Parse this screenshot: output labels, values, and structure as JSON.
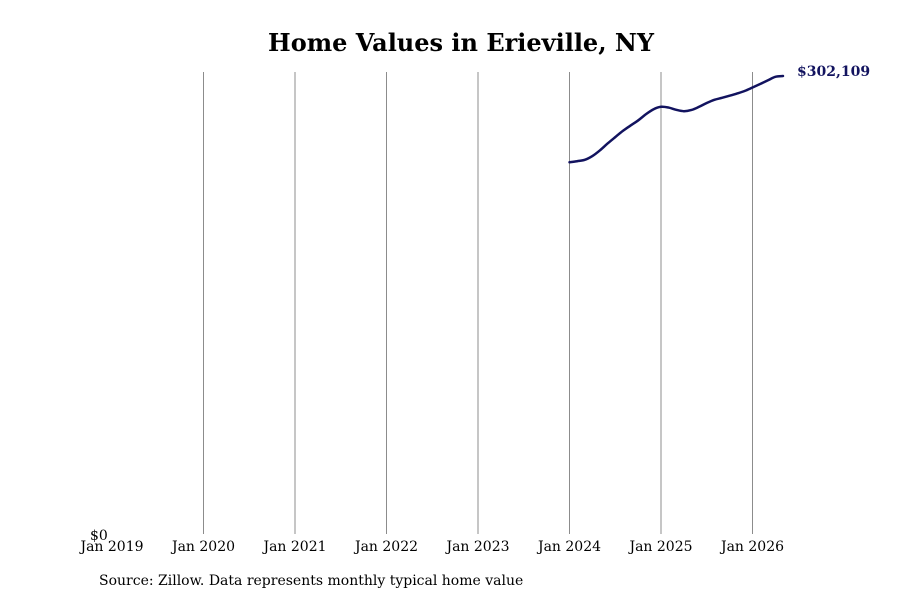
{
  "chart_data": {
    "type": "line",
    "title": "Home Values in Erieville, NY",
    "xlabel": "",
    "ylabel": "",
    "y_axis_label": "$0",
    "x_ticks": [
      "Jan 2019",
      "Jan 2020",
      "Jan 2021",
      "Jan 2022",
      "Jan 2023",
      "Jan 2024",
      "Jan 2025",
      "Jan 2026"
    ],
    "grid": "vertical",
    "ylim": [
      0,
      302109
    ],
    "series": [
      {
        "color": "#12135f",
        "end_label": "$302,109",
        "points": [
          {
            "x": "2024-01",
            "y": 245200
          },
          {
            "x": "2024-02",
            "y": 245900
          },
          {
            "x": "2024-03",
            "y": 246800
          },
          {
            "x": "2024-04",
            "y": 249300
          },
          {
            "x": "2024-05",
            "y": 253100
          },
          {
            "x": "2024-06",
            "y": 257600
          },
          {
            "x": "2024-07",
            "y": 261800
          },
          {
            "x": "2024-08",
            "y": 265900
          },
          {
            "x": "2024-09",
            "y": 269400
          },
          {
            "x": "2024-10",
            "y": 272800
          },
          {
            "x": "2024-11",
            "y": 276800
          },
          {
            "x": "2024-12",
            "y": 280100
          },
          {
            "x": "2025-01",
            "y": 281800
          },
          {
            "x": "2025-02",
            "y": 281300
          },
          {
            "x": "2025-03",
            "y": 279800
          },
          {
            "x": "2025-04",
            "y": 278900
          },
          {
            "x": "2025-05",
            "y": 279700
          },
          {
            "x": "2025-06",
            "y": 281800
          },
          {
            "x": "2025-07",
            "y": 284300
          },
          {
            "x": "2025-08",
            "y": 286400
          },
          {
            "x": "2025-09",
            "y": 287700
          },
          {
            "x": "2025-10",
            "y": 289100
          },
          {
            "x": "2025-11",
            "y": 290600
          },
          {
            "x": "2025-12",
            "y": 292300
          },
          {
            "x": "2026-01",
            "y": 294500
          },
          {
            "x": "2026-02",
            "y": 296800
          },
          {
            "x": "2026-03",
            "y": 299200
          },
          {
            "x": "2026-04",
            "y": 301600
          },
          {
            "x": "2026-05",
            "y": 302109
          }
        ]
      }
    ]
  },
  "source_note": "Source: Zillow. Data represents monthly typical home value"
}
